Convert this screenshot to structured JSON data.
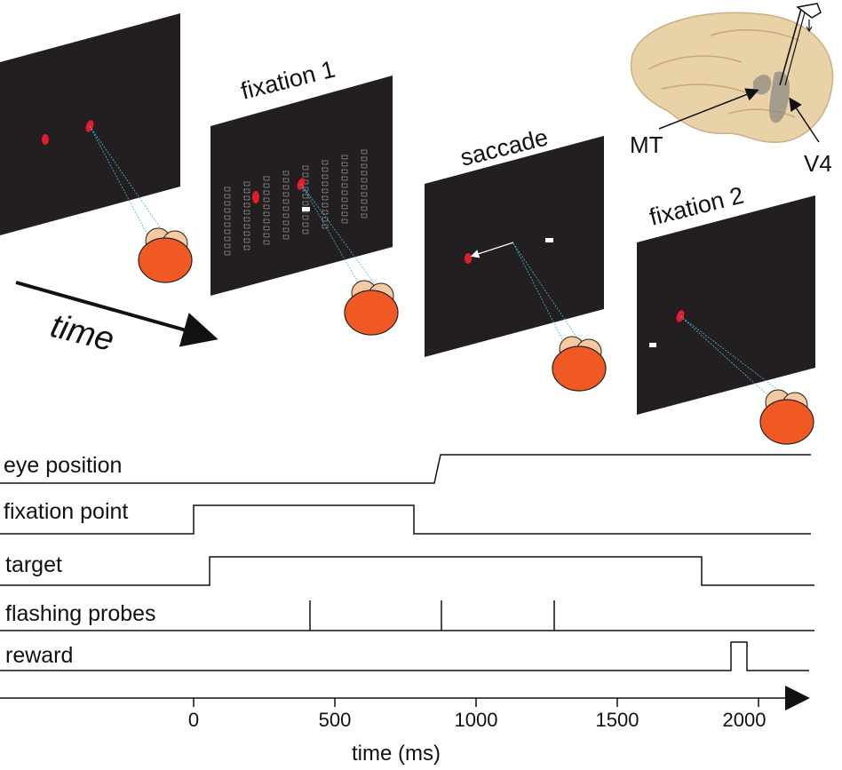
{
  "panels": {
    "fixation1": "fixation 1",
    "saccade": "saccade",
    "fixation2": "fixation 2"
  },
  "time_arrow_label": "time",
  "brain": {
    "mt_label": "MT",
    "v4_label": "V4"
  },
  "timeline": {
    "x_axis_label": "time (ms)",
    "x_ticks": [
      "0",
      "500",
      "1000",
      "1500",
      "2000"
    ],
    "signals": {
      "eye_position": "eye position",
      "fixation_point": "fixation point",
      "target": "target",
      "flashing_probes": "flashing probes",
      "reward": "reward"
    }
  },
  "colors": {
    "screen": "#231f20",
    "fixation_dot": "#e11d2a",
    "gaze_line": "#49b6d8",
    "head_main": "#f05a22",
    "head_back": "#f7c9a1",
    "brain": "#e9d2a8"
  }
}
